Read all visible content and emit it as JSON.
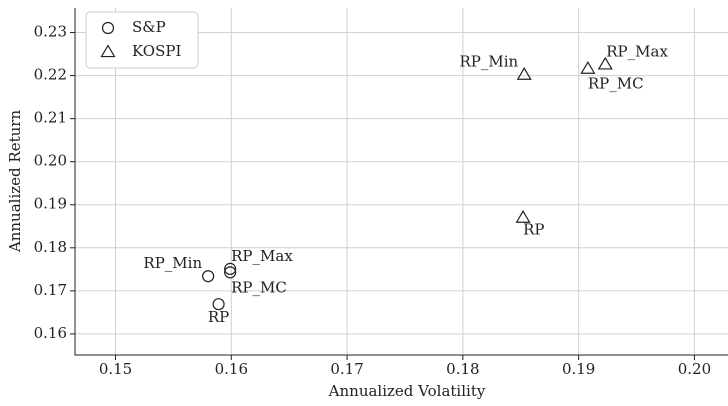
{
  "chart_data": {
    "type": "scatter",
    "x_label": "Annualized Volatility",
    "y_label": "Annualized Return",
    "xlim": [
      0.1465,
      0.2029
    ],
    "ylim": [
      0.1551,
      0.2357
    ],
    "xticks": [
      0.15,
      0.16,
      0.17,
      0.18,
      0.19,
      {
        "value": 0.2,
        "label": "0.20"
      }
    ],
    "yticks": [
      0.16,
      0.17,
      0.18,
      0.19,
      {
        "value": 0.2,
        "label": "0.20"
      },
      0.21,
      0.22,
      0.23
    ],
    "grid": true,
    "legend_position": "upper-left",
    "series": [
      {
        "name": "S&P",
        "marker": "circle",
        "color": "#222222",
        "x": [
          0.158,
          0.1599,
          0.1599,
          0.1589
        ],
        "values": [
          0.1734,
          0.1751,
          0.1743,
          0.1669
        ],
        "point_labels": [
          "RP_Min",
          "RP_Max",
          "RP_MC",
          "RP"
        ]
      },
      {
        "name": "KOSPI",
        "marker": "triangle",
        "color": "#222222",
        "x": [
          0.1853,
          0.1923,
          0.1908,
          0.1852
        ],
        "values": [
          0.2202,
          0.2226,
          0.2216,
          0.187
        ],
        "point_labels": [
          "RP_Min",
          "RP_Max",
          "RP_MC",
          "RP"
        ]
      }
    ]
  }
}
